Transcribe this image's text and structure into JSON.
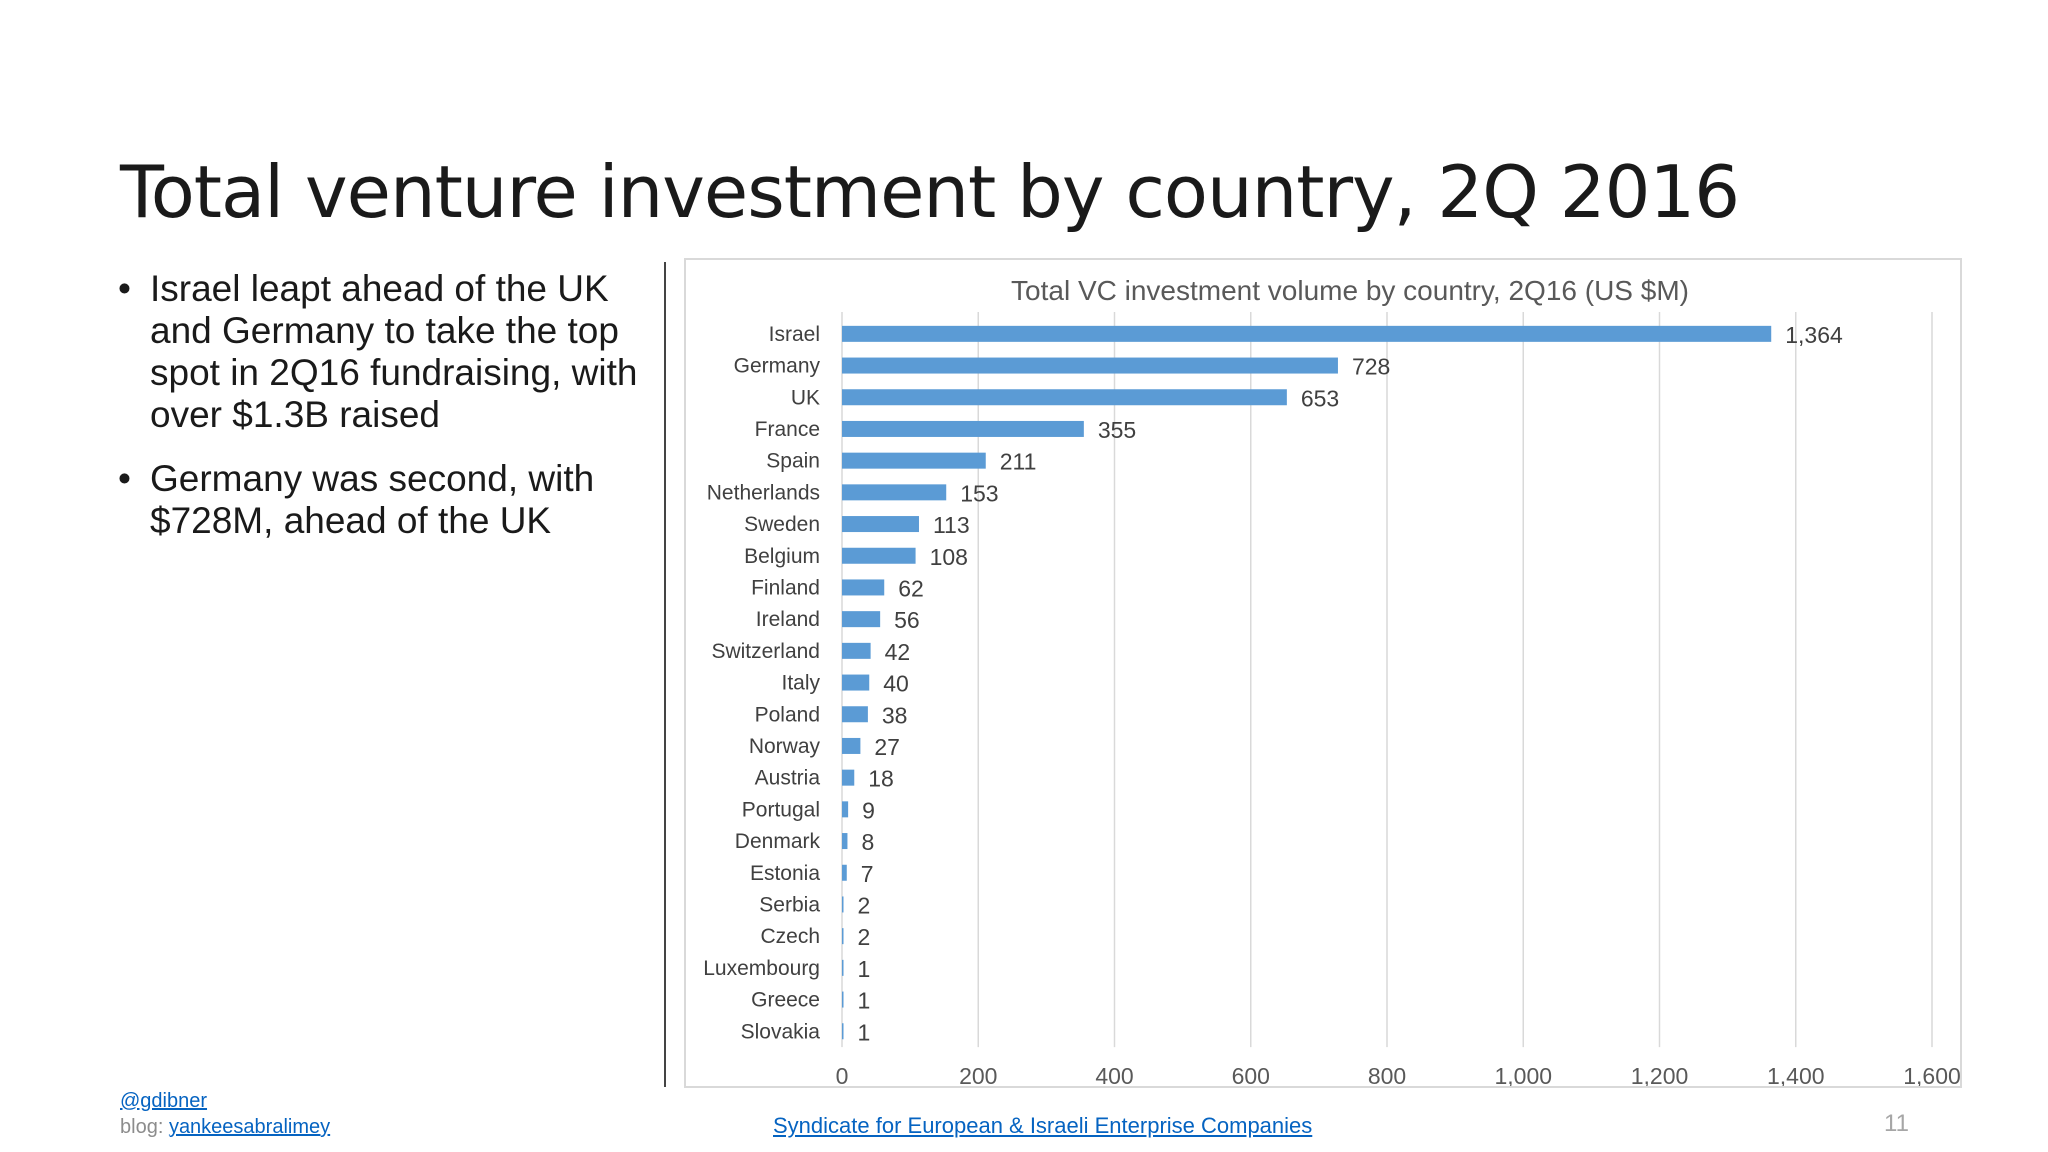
{
  "slide": {
    "title": "Total venture investment by country, 2Q 2016",
    "bullets": [
      "Israel leapt ahead of the UK and Germany to take the top spot in 2Q16 fundraising, with over $1.3B raised",
      "Germany was second, with $728M, ahead of the UK"
    ],
    "footer": {
      "handle": "@gdibner",
      "blog_label": "blog:",
      "blog_link": "yankeesabralimey",
      "source": "Syndicate for European & Israeli Enterprise Companies"
    },
    "page_number": "11"
  },
  "chart_data": {
    "type": "bar",
    "orientation": "horizontal",
    "title": "Total VC investment volume by country, 2Q16 (US $M)",
    "categories": [
      "Israel",
      "Germany",
      "UK",
      "France",
      "Spain",
      "Netherlands",
      "Sweden",
      "Belgium",
      "Finland",
      "Ireland",
      "Switzerland",
      "Italy",
      "Poland",
      "Norway",
      "Austria",
      "Portugal",
      "Denmark",
      "Estonia",
      "Serbia",
      "Czech",
      "Luxembourg",
      "Greece",
      "Slovakia"
    ],
    "values": [
      1364,
      728,
      653,
      355,
      211,
      153,
      113,
      108,
      62,
      56,
      42,
      40,
      38,
      27,
      18,
      9,
      8,
      7,
      2,
      2,
      1,
      1,
      1
    ],
    "data_labels": [
      "1,364",
      "728",
      "653",
      "355",
      "211",
      "153",
      "113",
      "108",
      "62",
      "56",
      "42",
      "40",
      "38",
      "27",
      "18",
      "9",
      "8",
      "7",
      "2",
      "2",
      "1",
      "1",
      "1"
    ],
    "xlim": [
      0,
      1600
    ],
    "x_ticks": [
      0,
      200,
      400,
      600,
      800,
      1000,
      1200,
      1400,
      1600
    ],
    "x_tick_labels": [
      "0",
      "200",
      "400",
      "600",
      "800",
      "1,000",
      "1,200",
      "1,400",
      "1,600"
    ],
    "grid": "vertical",
    "bar_color": "#5b9bd5",
    "legend": "none"
  }
}
